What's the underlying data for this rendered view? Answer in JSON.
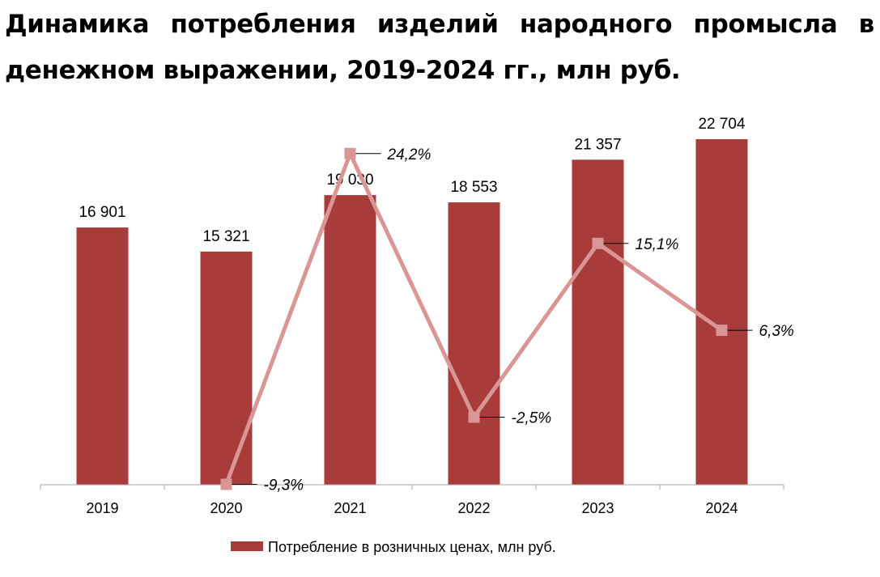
{
  "title": "Динамика потребления изделий народного промысла в денежном выражении, 2019-2024 гг., млн руб.",
  "chart_data": {
    "type": "bar",
    "categories": [
      "2019",
      "2020",
      "2021",
      "2022",
      "2023",
      "2024"
    ],
    "series": [
      {
        "name": "Потребление в розничных ценах, млн руб.",
        "values": [
          16901,
          15321,
          19030,
          18553,
          21357,
          22704
        ],
        "labels": [
          "16 901",
          "15 321",
          "19 030",
          "18 553",
          "21 357",
          "22 704"
        ],
        "color": "#A83C3B"
      },
      {
        "type": "line",
        "values": [
          null,
          -9.3,
          24.2,
          -2.5,
          15.1,
          6.3
        ],
        "labels": [
          "",
          "-9,3%",
          "24,2%",
          "-2,5%",
          "15,1%",
          "6,3%"
        ],
        "color": "#D99694"
      }
    ],
    "ylim": [
      0,
      24000
    ],
    "secondary_ylim": [
      -12,
      30
    ],
    "grid": false,
    "legend": "bottom"
  }
}
